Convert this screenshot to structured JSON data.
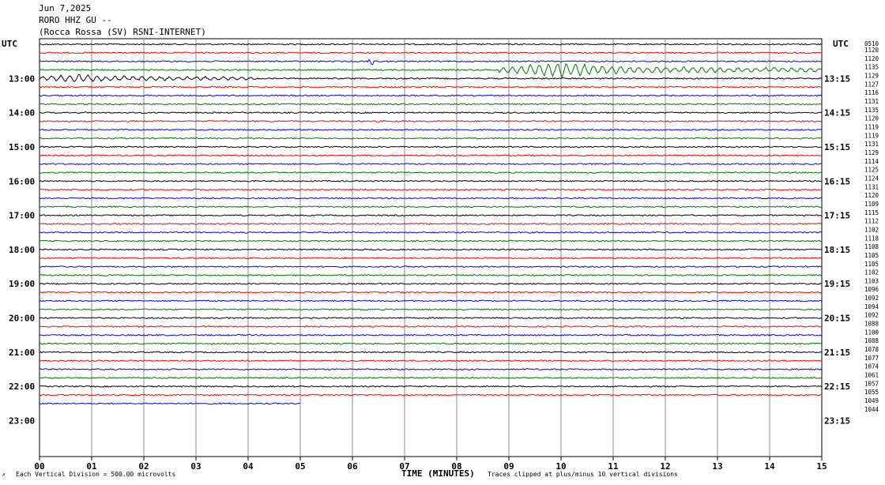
{
  "header": {
    "date": "Jun 7,2025",
    "station": "RORO HHZ GU --",
    "site": "(Rocca Rossa (SV) RSNI-INTERNET)"
  },
  "utc_left": "UTC",
  "utc_right": "UTC",
  "footer": {
    "scale_note": "Each Vertical Division =  500.00 microvolts",
    "clip_note": "Traces clipped at plus/minus 10 vertical divisions",
    "corner_mark": "↗"
  },
  "colors": {
    "trace_cycle": [
      "#000000",
      "#ff0000",
      "#0000ff",
      "#007800"
    ],
    "grid": "#8c8c8c"
  },
  "chart_data": {
    "type": "line",
    "title": "",
    "xlabel": "TIME (MINUTES)",
    "ylabel": "",
    "xlim": [
      0,
      15
    ],
    "x_ticks": [
      "00",
      "01",
      "02",
      "03",
      "04",
      "05",
      "06",
      "07",
      "08",
      "09",
      "10",
      "11",
      "12",
      "13",
      "14",
      "15"
    ],
    "left_time_labels": [
      "13:00",
      "14:00",
      "15:00",
      "16:00",
      "17:00",
      "18:00",
      "19:00",
      "20:00",
      "21:00",
      "22:00",
      "23:00"
    ],
    "right_time_labels": [
      "13:15",
      "14:15",
      "15:15",
      "16:15",
      "17:15",
      "18:15",
      "19:15",
      "20:15",
      "21:15",
      "22:15",
      "23:15"
    ],
    "trace_scale_values": [
      "1120",
      "1120",
      "1135",
      "1129",
      "1127",
      "1116",
      "1131",
      "1135",
      "1120",
      "1119",
      "1119",
      "1131",
      "1129",
      "1114",
      "1125",
      "1124",
      "1131",
      "1120",
      "1109",
      "1115",
      "1112",
      "1102",
      "1118",
      "1108",
      "1105",
      "1105",
      "1102",
      "1103",
      "1096",
      "1092",
      "1094",
      "1092",
      "1088",
      "1100",
      "1088",
      "1078",
      "1077",
      "1074",
      "1061",
      "1057",
      "1055",
      "1049",
      "1044"
    ],
    "trace_scale_first_value": "0510",
    "trace_count": 43,
    "last_trace_end_minute": 5,
    "events": [
      {
        "trace": 3,
        "start_minute": 8.8,
        "end_minute": 15,
        "amplitude": "large",
        "peak_minute": 10.0
      },
      {
        "trace": 4,
        "start_minute": 0,
        "end_minute": 4.2,
        "amplitude": "medium",
        "peak_minute": 0.8
      },
      {
        "trace": 2,
        "start_minute": 6.3,
        "end_minute": 6.4,
        "amplitude": "spike",
        "peak_minute": 6.35
      }
    ]
  }
}
